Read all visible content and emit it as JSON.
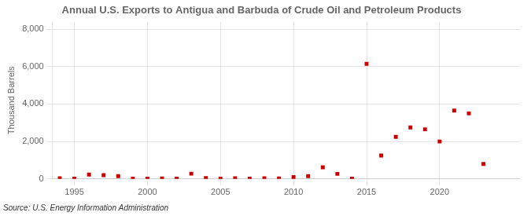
{
  "chart_data": {
    "type": "scatter",
    "title": "Annual U.S. Exports to Antigua and Barbuda of Crude Oil and Petroleum Products",
    "y_label": "Thousand Barrels",
    "source": "Source: U.S. Energy Information Administration",
    "x": [
      1994,
      1995,
      1996,
      1997,
      1998,
      1999,
      2000,
      2001,
      2002,
      2003,
      2004,
      2005,
      2006,
      2007,
      2008,
      2009,
      2010,
      2011,
      2012,
      2013,
      2014,
      2015,
      2016,
      2017,
      2018,
      2019,
      2020,
      2021,
      2022,
      2023
    ],
    "values": [
      30,
      10,
      230,
      200,
      150,
      10,
      15,
      20,
      10,
      280,
      50,
      10,
      30,
      10,
      30,
      20,
      100,
      150,
      620,
      270,
      10,
      6150,
      1250,
      2250,
      2750,
      2650,
      2000,
      3650,
      3500,
      800
    ],
    "color": "#cc0000",
    "marker": "square",
    "xlim": [
      1993.5,
      2025.5
    ],
    "xticks": [
      1995,
      2000,
      2005,
      2010,
      2015,
      2020
    ],
    "ylim": [
      0,
      8400
    ],
    "yticks": [
      0,
      {
        "value": 2000,
        "label": "2,000"
      },
      {
        "value": 4000,
        "label": "4,000"
      },
      {
        "value": 6000,
        "label": "6,000"
      },
      {
        "value": 8000,
        "label": "8,000"
      }
    ],
    "grid": true
  }
}
